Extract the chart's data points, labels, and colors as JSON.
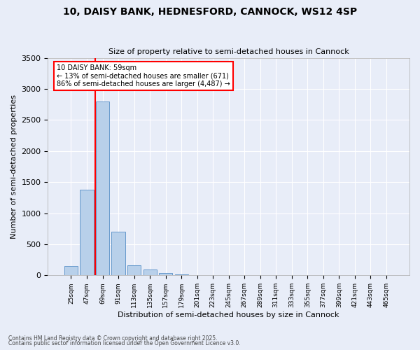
{
  "title1": "10, DAISY BANK, HEDNESFORD, CANNOCK, WS12 4SP",
  "title2": "Size of property relative to semi-detached houses in Cannock",
  "xlabel": "Distribution of semi-detached houses by size in Cannock",
  "ylabel": "Number of semi-detached properties",
  "categories": [
    "25sqm",
    "47sqm",
    "69sqm",
    "91sqm",
    "113sqm",
    "135sqm",
    "157sqm",
    "179sqm",
    "201sqm",
    "223sqm",
    "245sqm",
    "267sqm",
    "289sqm",
    "311sqm",
    "333sqm",
    "355sqm",
    "377sqm",
    "399sqm",
    "421sqm",
    "443sqm",
    "465sqm"
  ],
  "values": [
    150,
    1380,
    2800,
    700,
    160,
    90,
    40,
    12,
    5,
    3,
    2,
    1,
    1,
    1,
    0,
    0,
    0,
    0,
    0,
    0,
    0
  ],
  "bar_color": "#b8d0ea",
  "bar_edge_color": "#6699cc",
  "vline_color": "red",
  "annotation_title": "10 DAISY BANK: 59sqm",
  "annotation_line2": "← 13% of semi-detached houses are smaller (671)",
  "annotation_line3": "86% of semi-detached houses are larger (4,487) →",
  "annotation_edge_color": "red",
  "ylim": [
    0,
    3500
  ],
  "yticks": [
    0,
    500,
    1000,
    1500,
    2000,
    2500,
    3000,
    3500
  ],
  "footer1": "Contains HM Land Registry data © Crown copyright and database right 2025.",
  "footer2": "Contains public sector information licensed under the Open Government Licence v3.0.",
  "bg_color": "#e8edf8",
  "grid_color": "white"
}
